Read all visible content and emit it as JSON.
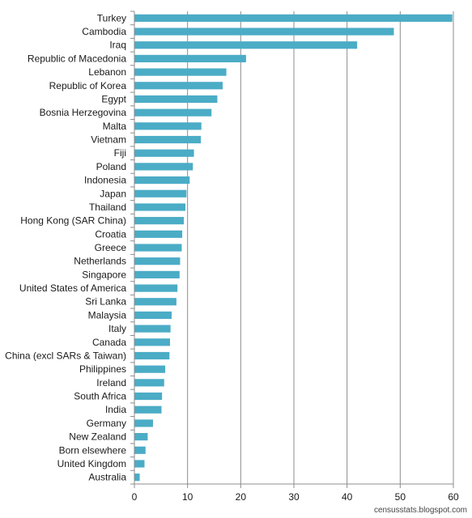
{
  "chart_data": {
    "type": "bar",
    "orientation": "horizontal",
    "categories": [
      "Turkey",
      "Cambodia",
      "Iraq",
      "Republic of Macedonia",
      "Lebanon",
      "Republic of Korea",
      "Egypt",
      "Bosnia Herzegovina",
      "Malta",
      "Vietnam",
      "Fiji",
      "Poland",
      "Indonesia",
      "Japan",
      "Thailand",
      "Hong Kong (SAR China)",
      "Croatia",
      "Greece",
      "Netherlands",
      "Singapore",
      "United States of America",
      "Sri Lanka",
      "Malaysia",
      "Italy",
      "Canada",
      "China (excl SARs & Taiwan)",
      "Philippines",
      "Ireland",
      "South Africa",
      "India",
      "Germany",
      "New Zealand",
      "Born elsewhere",
      "United Kingdom",
      "Australia"
    ],
    "values": [
      59.8,
      48.8,
      41.9,
      21.0,
      17.3,
      16.6,
      15.6,
      14.5,
      12.6,
      12.5,
      11.2,
      11.0,
      10.4,
      9.8,
      9.6,
      9.3,
      9.0,
      8.9,
      8.6,
      8.5,
      8.1,
      7.9,
      7.0,
      6.8,
      6.7,
      6.6,
      5.8,
      5.6,
      5.2,
      5.1,
      3.5,
      2.5,
      2.1,
      1.9,
      1.0
    ],
    "xlim": [
      0,
      60
    ],
    "xticks": [
      "0",
      "10",
      "20",
      "30",
      "40",
      "50",
      "60"
    ],
    "xtick_values": [
      0,
      10,
      20,
      30,
      40,
      50,
      60
    ],
    "grid": true,
    "bar_color": "#4bacc6",
    "grid_color": "#8c8c8c"
  },
  "credit": "censusstats.blogspot.com"
}
